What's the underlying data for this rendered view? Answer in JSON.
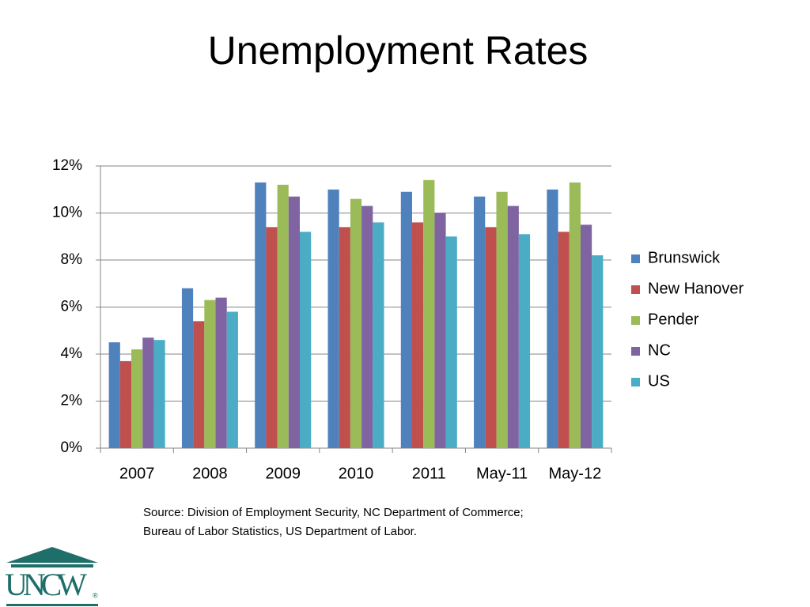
{
  "chart_data": {
    "type": "bar",
    "title": "Unemployment Rates",
    "categories": [
      "2007",
      "2008",
      "2009",
      "2010",
      "2011",
      "May-11",
      "May-12"
    ],
    "series": [
      {
        "name": "Brunswick",
        "color": "#4f81bd",
        "values": [
          4.5,
          6.8,
          11.3,
          11.0,
          10.9,
          10.7,
          11.0
        ]
      },
      {
        "name": "New Hanover",
        "color": "#c0504d",
        "values": [
          3.7,
          5.4,
          9.4,
          9.4,
          9.6,
          9.4,
          9.2
        ]
      },
      {
        "name": "Pender",
        "color": "#9bbb59",
        "values": [
          4.2,
          6.3,
          11.2,
          10.6,
          11.4,
          10.9,
          11.3
        ]
      },
      {
        "name": "NC",
        "color": "#8064a2",
        "values": [
          4.7,
          6.4,
          10.7,
          10.3,
          10.0,
          10.3,
          9.5
        ]
      },
      {
        "name": "US",
        "color": "#4bacc6",
        "values": [
          4.6,
          5.8,
          9.2,
          9.6,
          9.0,
          9.1,
          8.2
        ]
      }
    ],
    "ylim": [
      0,
      12
    ],
    "yticks": [
      {
        "value": 0,
        "label": "0%"
      },
      {
        "value": 2,
        "label": "2%"
      },
      {
        "value": 4,
        "label": "4%"
      },
      {
        "value": 6,
        "label": "6%"
      },
      {
        "value": 8,
        "label": "8%"
      },
      {
        "value": 10,
        "label": "10%"
      },
      {
        "value": 12,
        "label": "12%"
      }
    ],
    "grid": true,
    "legend": "right",
    "source": [
      "Source:  Division of Employment Security, NC Department of Commerce;",
      "Bureau of Labor Statistics, US Department of Labor."
    ]
  },
  "logo": {
    "text": "UNCW",
    "mark": "®"
  }
}
